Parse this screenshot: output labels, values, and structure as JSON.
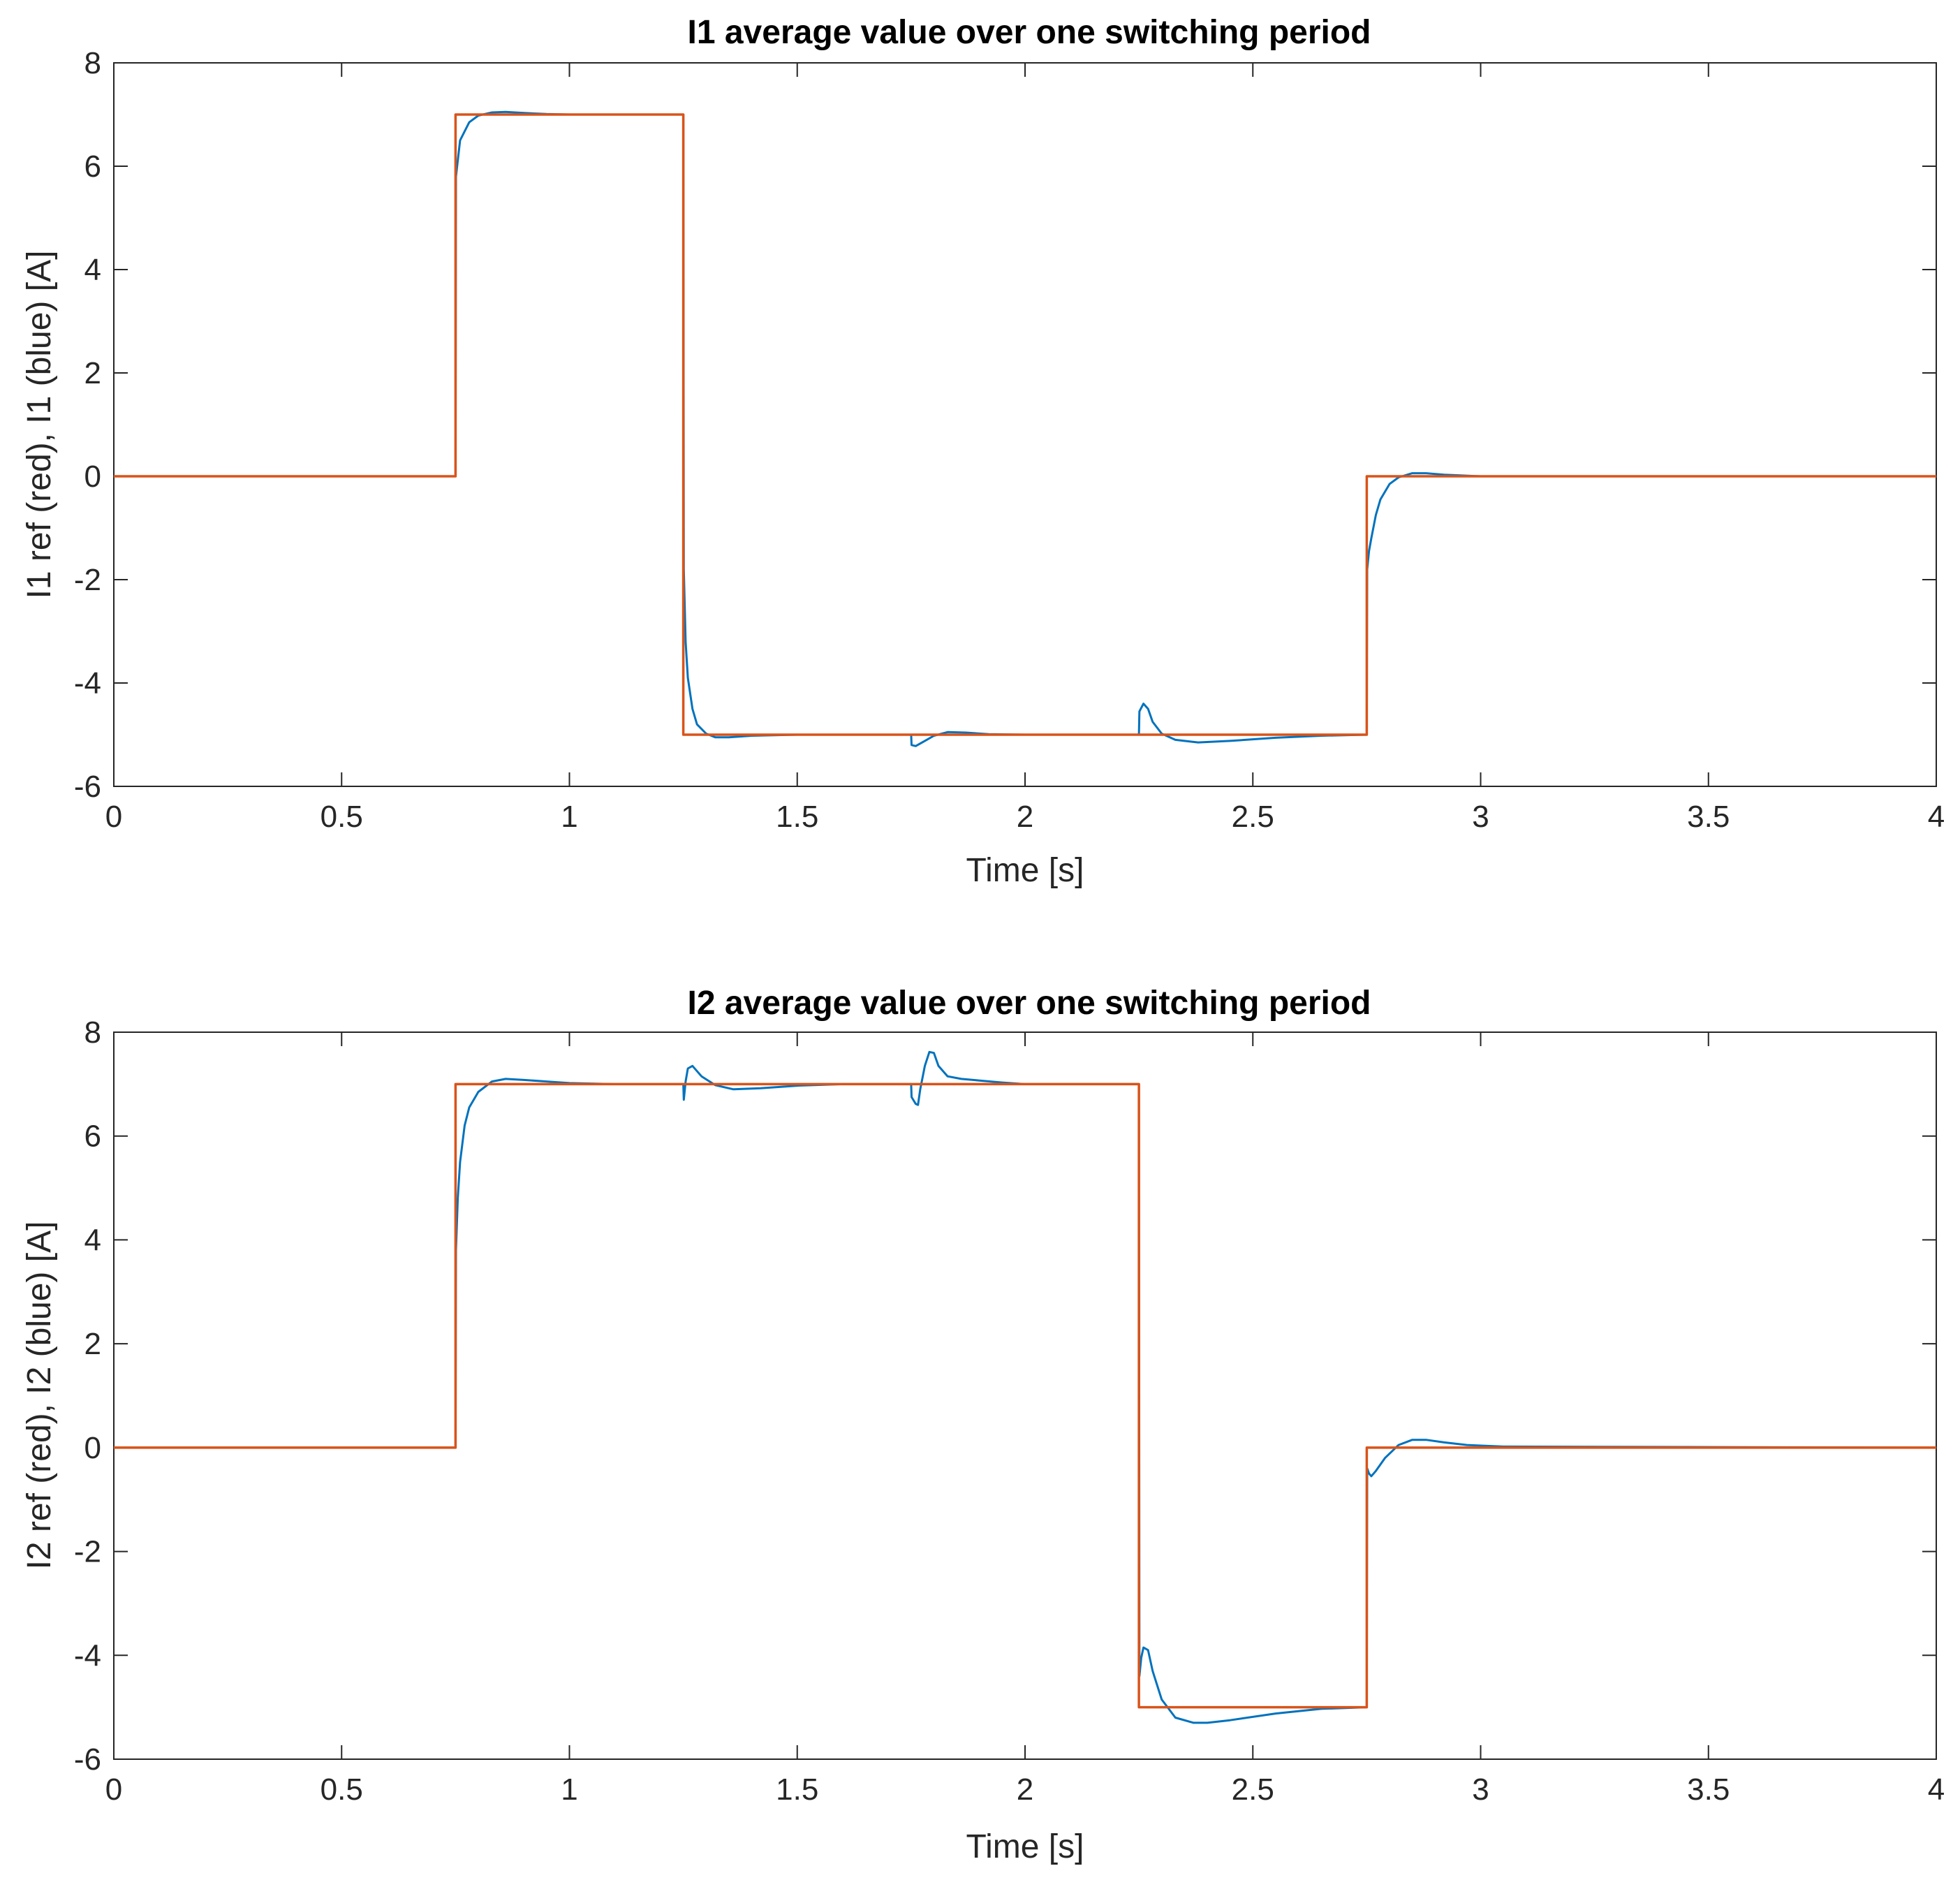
{
  "chart_data": [
    {
      "type": "line",
      "title": "I1 average value over one switching period",
      "xlabel": "Time [s]",
      "ylabel": "I1 ref (red), I1 (blue) [A]",
      "xlim": [
        0,
        4
      ],
      "ylim": [
        -6,
        8
      ],
      "xticks": [
        "0",
        "0.5",
        "1",
        "1.5",
        "2",
        "2.5",
        "3",
        "3.5",
        "4"
      ],
      "yticks": [
        "-6",
        "-4",
        "-2",
        "0",
        "2",
        "4",
        "6",
        "8"
      ],
      "grid": false,
      "series": [
        {
          "color": "#D95319",
          "role": "reference",
          "x": [
            0,
            0.75,
            0.75,
            1.25,
            1.25,
            2.75,
            2.75,
            4
          ],
          "y": [
            0,
            0,
            7,
            7,
            -5,
            -5,
            0,
            0
          ]
        },
        {
          "color": "#0072BD",
          "role": "measured",
          "x": [
            0,
            0.75,
            0.751,
            0.76,
            0.78,
            0.8,
            0.83,
            0.86,
            0.9,
            0.95,
            1.0,
            1.25,
            1.251,
            1.255,
            1.26,
            1.27,
            1.28,
            1.3,
            1.32,
            1.35,
            1.4,
            1.5,
            1.75,
            1.751,
            1.76,
            1.78,
            1.8,
            1.83,
            1.87,
            1.92,
            2.0,
            2.25,
            2.251,
            2.26,
            2.27,
            2.28,
            2.3,
            2.33,
            2.38,
            2.45,
            2.55,
            2.65,
            2.75,
            2.751,
            2.755,
            2.76,
            2.77,
            2.78,
            2.8,
            2.82,
            2.85,
            2.88,
            2.92,
            3.0,
            4.0
          ],
          "y": [
            0,
            0,
            5.8,
            6.5,
            6.85,
            6.98,
            7.04,
            7.05,
            7.03,
            7.01,
            7.0,
            7.0,
            -1.8,
            -3.2,
            -3.9,
            -4.5,
            -4.8,
            -4.98,
            -5.05,
            -5.05,
            -5.02,
            -5.0,
            -5.0,
            -5.2,
            -5.22,
            -5.12,
            -5.02,
            -4.95,
            -4.96,
            -4.99,
            -5.0,
            -5.0,
            -4.55,
            -4.4,
            -4.5,
            -4.75,
            -4.98,
            -5.1,
            -5.15,
            -5.12,
            -5.06,
            -5.02,
            -5.0,
            -1.8,
            -1.45,
            -1.2,
            -0.75,
            -0.45,
            -0.15,
            -0.02,
            0.06,
            0.06,
            0.03,
            0.0,
            0.0
          ]
        }
      ]
    },
    {
      "type": "line",
      "title": "I2 average value over one switching period",
      "xlabel": "Time [s]",
      "ylabel": "I2 ref (red), I2 (blue) [A]",
      "xlim": [
        0,
        4
      ],
      "ylim": [
        -6,
        8
      ],
      "xticks": [
        "0",
        "0.5",
        "1",
        "1.5",
        "2",
        "2.5",
        "3",
        "3.5",
        "4"
      ],
      "yticks": [
        "-6",
        "-4",
        "-2",
        "0",
        "2",
        "4",
        "6",
        "8"
      ],
      "grid": false,
      "series": [
        {
          "color": "#D95319",
          "role": "reference",
          "x": [
            0,
            0.75,
            0.75,
            2.25,
            2.25,
            2.75,
            2.75,
            4
          ],
          "y": [
            0,
            0,
            7,
            7,
            -5,
            -5,
            0,
            0
          ]
        },
        {
          "color": "#0072BD",
          "role": "measured",
          "x": [
            0,
            0.75,
            0.751,
            0.755,
            0.76,
            0.77,
            0.78,
            0.8,
            0.83,
            0.86,
            0.9,
            0.95,
            1.0,
            1.1,
            1.25,
            1.251,
            1.255,
            1.26,
            1.27,
            1.29,
            1.32,
            1.36,
            1.42,
            1.5,
            1.6,
            1.75,
            1.751,
            1.76,
            1.765,
            1.77,
            1.78,
            1.79,
            1.8,
            1.81,
            1.83,
            1.86,
            1.9,
            1.95,
            2.0,
            2.25,
            2.251,
            2.255,
            2.26,
            2.27,
            2.28,
            2.3,
            2.33,
            2.37,
            2.4,
            2.45,
            2.55,
            2.65,
            2.75,
            2.751,
            2.755,
            2.76,
            2.77,
            2.79,
            2.82,
            2.85,
            2.88,
            2.92,
            2.97,
            3.05,
            4.0
          ],
          "y": [
            0,
            0,
            3.8,
            4.8,
            5.5,
            6.2,
            6.55,
            6.85,
            7.05,
            7.1,
            7.08,
            7.05,
            7.02,
            7.0,
            7.0,
            6.7,
            7.05,
            7.3,
            7.35,
            7.15,
            6.98,
            6.9,
            6.92,
            6.97,
            7.0,
            7.0,
            6.75,
            6.62,
            6.6,
            6.9,
            7.35,
            7.62,
            7.6,
            7.35,
            7.15,
            7.1,
            7.07,
            7.03,
            7.0,
            7.0,
            -4.4,
            -4.05,
            -3.85,
            -3.9,
            -4.3,
            -4.85,
            -5.2,
            -5.3,
            -5.3,
            -5.25,
            -5.12,
            -5.03,
            -5.0,
            -0.4,
            -0.5,
            -0.55,
            -0.45,
            -0.2,
            0.05,
            0.15,
            0.15,
            0.1,
            0.05,
            0.02,
            0.0
          ]
        }
      ]
    }
  ]
}
